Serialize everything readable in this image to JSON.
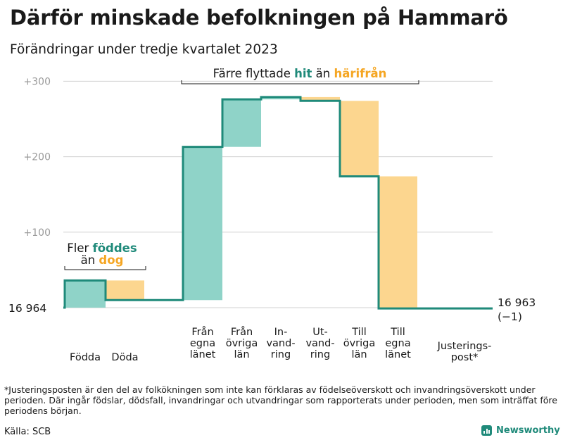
{
  "header": {
    "title": "Därför minskade befolkningen på Hammarö",
    "subtitle": "Förändringar under tredje kvartalet 2023"
  },
  "colors": {
    "teal": "#1f8a7a",
    "teal_light": "#8fd3c8",
    "orange_light": "#fcd68f",
    "orange_text": "#f5a623",
    "grid": "#d0d0d0",
    "tick_text": "#9a9a9a"
  },
  "chart_data": {
    "type": "waterfall",
    "baseline_label": "16  964",
    "end_label_value": "16 963",
    "end_label_change": "(−1)",
    "y_ticks": [
      {
        "value": 100,
        "label": "+100"
      },
      {
        "value": 200,
        "label": "+200"
      },
      {
        "value": 300,
        "label": "+300"
      }
    ],
    "ylim": [
      -10,
      310
    ],
    "steps": [
      {
        "label_lines": [
          "Födda"
        ],
        "from": 0,
        "to": 36,
        "kind": "in",
        "label_row": "low"
      },
      {
        "label_lines": [
          "Döda"
        ],
        "from": 36,
        "to": 10,
        "kind": "out",
        "label_row": "low"
      },
      {
        "label_lines": [
          "Från",
          "egna",
          "länet"
        ],
        "from": 10,
        "to": 213,
        "kind": "in",
        "label_row": "high"
      },
      {
        "label_lines": [
          "Från",
          "övriga",
          "län"
        ],
        "from": 213,
        "to": 276,
        "kind": "in",
        "label_row": "high"
      },
      {
        "label_lines": [
          "In-",
          "vand-",
          "ring"
        ],
        "from": 276,
        "to": 279,
        "kind": "in",
        "label_row": "high"
      },
      {
        "label_lines": [
          "Ut-",
          "vand-",
          "ring"
        ],
        "from": 279,
        "to": 274,
        "kind": "out",
        "label_row": "high"
      },
      {
        "label_lines": [
          "Till",
          "övriga",
          "län"
        ],
        "from": 274,
        "to": 174,
        "kind": "out",
        "label_row": "high"
      },
      {
        "label_lines": [
          "Till",
          "egna",
          "länet"
        ],
        "from": 174,
        "to": -1,
        "kind": "out",
        "label_row": "high"
      },
      {
        "label_lines": [
          "Justerings-",
          "post*"
        ],
        "from": -1,
        "to": -1,
        "kind": "adjust",
        "label_row": "low"
      }
    ],
    "annotations": {
      "births": {
        "prefix": "Fler",
        "highlight_in": "föddes",
        "middle": "än",
        "highlight_out": "dog"
      },
      "migration": {
        "prefix": "Färre flyttade",
        "highlight_in": "hit",
        "middle": "än",
        "highlight_out": "härifrån"
      }
    }
  },
  "footer": {
    "footnote": "*Justeringsposten är den del av folkökningen som inte kan förklaras av födelseöverskott och invandringsöverskott under perioden. Där ingår födslar, dödsfall, invandringar och utvandringar som rapporterats under perioden, men som inträffat före periodens början.",
    "source": "Källa: SCB",
    "brand": "Newsworthy"
  }
}
